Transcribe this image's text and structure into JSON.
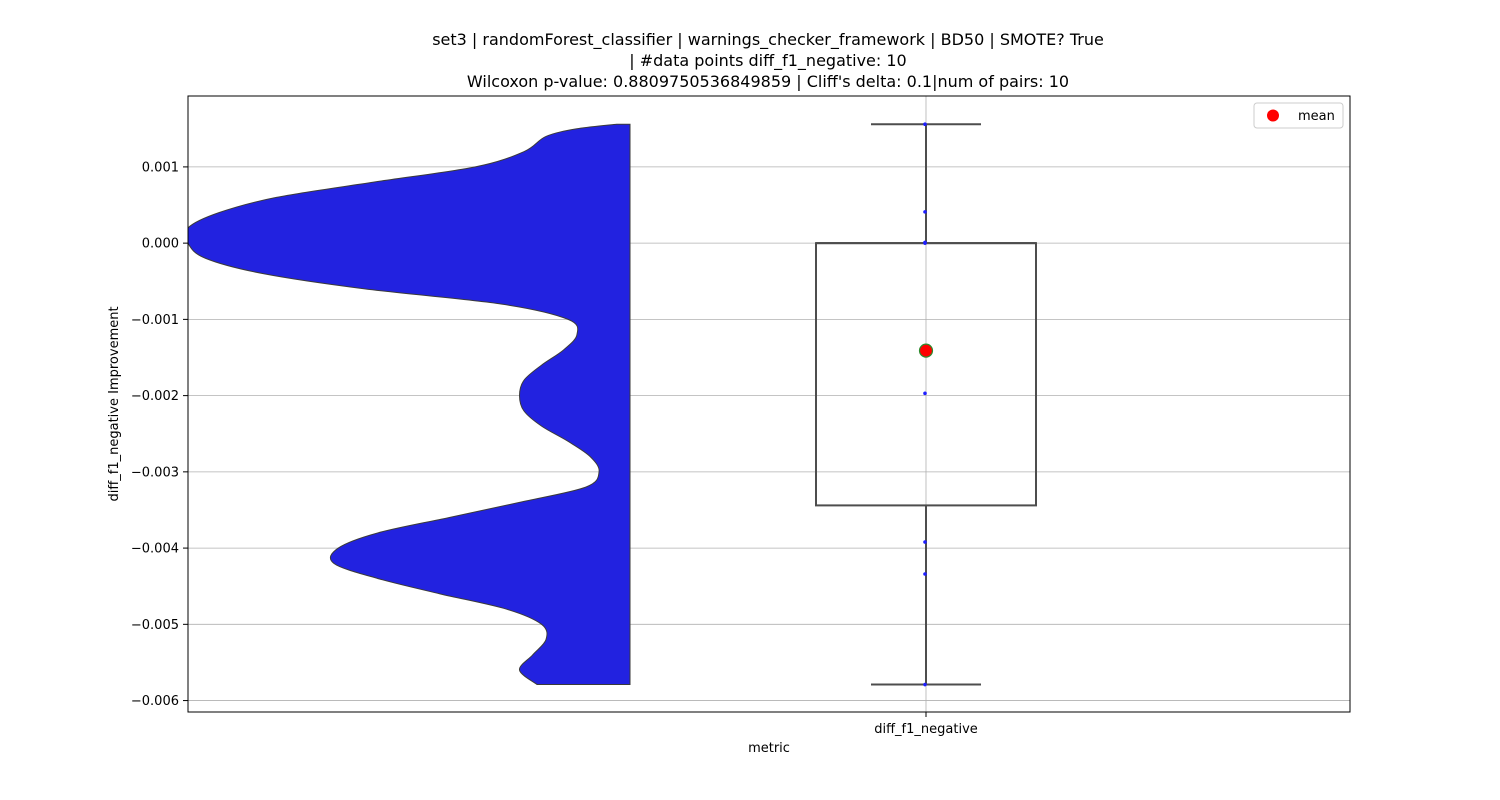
{
  "chart_data": {
    "type": "violin+box",
    "title_lines": [
      "set3 | randomForest_classifier | warnings_checker_framework | BD50 | SMOTE? True",
      "| #data points diff_f1_negative: 10",
      "Wilcoxon p-value: 0.8809750536849859 | Cliff's delta: 0.1|num of pairs: 10"
    ],
    "xlabel": "metric",
    "ylabel": "diff_f1_negative Improvement",
    "categories": [
      "diff_f1_negative"
    ],
    "ylim": [
      -0.00615,
      0.00193
    ],
    "yticks": [
      0.001,
      0.0,
      -0.001,
      -0.002,
      -0.003,
      -0.004,
      -0.005,
      -0.006
    ],
    "ytick_labels": [
      "0.001",
      "0.000",
      "−0.001",
      "−0.002",
      "−0.003",
      "−0.004",
      "−0.005",
      "−0.006"
    ],
    "grid": true,
    "legend": {
      "placement": "upper-right",
      "entries": [
        "mean"
      ]
    },
    "box": {
      "whisker_low": -0.00579,
      "q1": -0.00344,
      "median": 0.0,
      "q3": 0.0,
      "whisker_high": 0.00156,
      "mean": -0.00141
    },
    "points": [
      0.00156,
      0.00041,
      1e-05,
      0.0,
      -0.00197,
      -0.00392,
      -0.00434,
      -0.00579
    ],
    "violin_density": [
      [
        0.00156,
        0.03
      ],
      [
        0.0015,
        0.12
      ],
      [
        0.0014,
        0.19
      ],
      [
        0.0012,
        0.24
      ],
      [
        0.001,
        0.35
      ],
      [
        0.0008,
        0.58
      ],
      [
        0.0006,
        0.8
      ],
      [
        0.0004,
        0.93
      ],
      [
        0.0002,
        1.0
      ],
      [
        0.0,
        1.0
      ],
      [
        -0.0002,
        0.96
      ],
      [
        -0.0004,
        0.83
      ],
      [
        -0.0006,
        0.6
      ],
      [
        -0.0008,
        0.29
      ],
      [
        -0.001,
        0.14
      ],
      [
        -0.0012,
        0.12
      ],
      [
        -0.0014,
        0.15
      ],
      [
        -0.0016,
        0.2
      ],
      [
        -0.0018,
        0.24
      ],
      [
        -0.002,
        0.25
      ],
      [
        -0.0022,
        0.24
      ],
      [
        -0.0024,
        0.2
      ],
      [
        -0.0026,
        0.14
      ],
      [
        -0.0028,
        0.09
      ],
      [
        -0.003,
        0.07
      ],
      [
        -0.0032,
        0.1
      ],
      [
        -0.0034,
        0.25
      ],
      [
        -0.0036,
        0.41
      ],
      [
        -0.0038,
        0.57
      ],
      [
        -0.004,
        0.66
      ],
      [
        -0.0042,
        0.67
      ],
      [
        -0.0044,
        0.57
      ],
      [
        -0.0046,
        0.43
      ],
      [
        -0.0048,
        0.28
      ],
      [
        -0.005,
        0.2
      ],
      [
        -0.0052,
        0.19
      ],
      [
        -0.0054,
        0.22
      ],
      [
        -0.0056,
        0.25
      ],
      [
        -0.00579,
        0.21
      ]
    ],
    "colors": {
      "violin": "#2222e0",
      "box_edge": "#4d4d4d",
      "mean_fill": "#ff0000",
      "mean_edge": "#2e8b2e",
      "points": "#1f1fff",
      "grid": "#b0b0b0"
    }
  }
}
